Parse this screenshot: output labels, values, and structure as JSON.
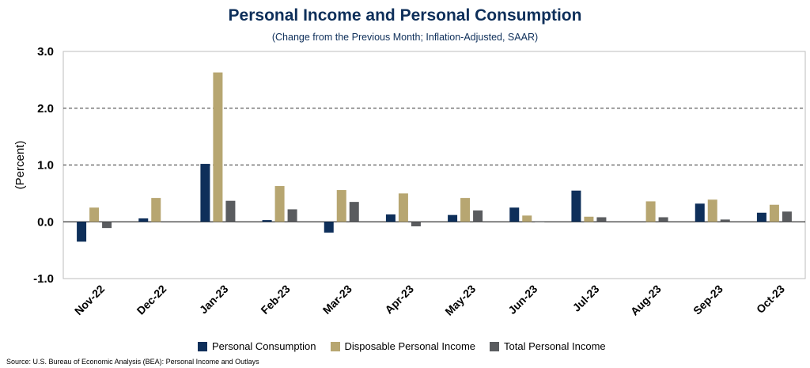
{
  "chart_data": {
    "type": "bar",
    "title": "Personal Income and Personal Consumption",
    "subtitle": "(Change from the Previous Month; Inflation-Adjusted, SAAR)",
    "ylabel": "(Percent)",
    "xlabel": "",
    "ylim": [
      -1.0,
      3.0
    ],
    "yticks": [
      "3.0",
      "2.0",
      "1.0",
      "0.0",
      "-1.0"
    ],
    "ytick_values": [
      3.0,
      2.0,
      1.0,
      0.0,
      -1.0
    ],
    "grid": "dashed horizontal at 1.0 and 2.0",
    "legend_position": "bottom",
    "categories": [
      "Nov-22",
      "Dec-22",
      "Jan-23",
      "Feb-23",
      "Mar-23",
      "Apr-23",
      "May-23",
      "Jun-23",
      "Jul-23",
      "Aug-23",
      "Sep-23",
      "Oct-23"
    ],
    "series": [
      {
        "name": "Personal Consumption",
        "color": "#0e2f5a",
        "values": [
          -0.35,
          0.06,
          1.02,
          0.03,
          -0.19,
          0.13,
          0.12,
          0.25,
          0.55,
          0.0,
          0.32,
          0.16
        ]
      },
      {
        "name": "Disposable Personal Income",
        "color": "#b7a671",
        "values": [
          0.25,
          0.42,
          2.63,
          0.63,
          0.56,
          0.5,
          0.42,
          0.11,
          0.09,
          0.36,
          0.39,
          0.3
        ]
      },
      {
        "name": "Total Personal Income",
        "color": "#5a5c5f",
        "values": [
          -0.11,
          0.0,
          0.37,
          0.22,
          0.35,
          -0.08,
          0.2,
          0.01,
          0.08,
          0.08,
          0.04,
          0.18
        ]
      }
    ],
    "source": "Source: U.S. Bureau of Economic Analysis (BEA): Personal Income and Outlays"
  }
}
